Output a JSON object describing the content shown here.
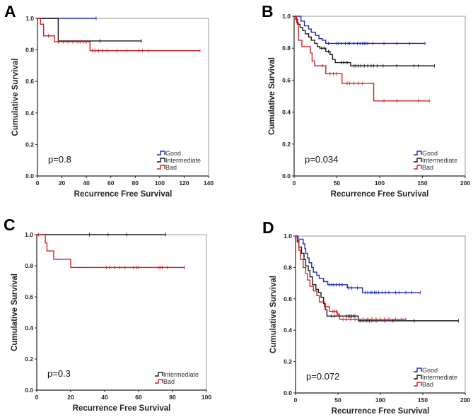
{
  "chart_data": [
    {
      "type": "line",
      "panel_label": "A",
      "xlabel": "Recurrence Free Survival",
      "ylabel": "Cumulative Survival",
      "xlim": [
        0,
        140
      ],
      "ylim": [
        0,
        1
      ],
      "xticks": [
        "0",
        "20",
        "40",
        "60",
        "80",
        "100",
        "120",
        "140"
      ],
      "yticks": [
        "0.0",
        "0.2",
        "0.4",
        "0.6",
        "0.8",
        "1.0"
      ],
      "annotation": "p=0.8",
      "series": [
        {
          "name": "Good",
          "color": "#1f2bb5",
          "end": 48,
          "steps": [],
          "censors": [
            48
          ]
        },
        {
          "name": "Intermediate",
          "color": "#1a1a1a",
          "end": 85,
          "steps": [
            [
              17,
              0.857
            ]
          ],
          "censors": [
            51,
            85
          ]
        },
        {
          "name": "Bad",
          "color": "#d42020",
          "end": 133,
          "steps": [
            [
              2.5,
              0.963
            ],
            [
              5,
              0.889
            ],
            [
              14,
              0.852
            ],
            [
              43,
              0.795
            ]
          ],
          "censors": [
            9,
            17,
            21,
            25,
            29,
            33,
            35,
            38,
            40,
            45,
            47,
            50,
            53,
            57,
            65,
            73,
            83,
            86,
            91,
            133
          ]
        }
      ]
    },
    {
      "type": "line",
      "panel_label": "B",
      "xlabel": "Recurrence Free Survival",
      "ylabel": "Cumulative Survival",
      "xlim": [
        0,
        200
      ],
      "ylim": [
        0,
        1
      ],
      "xticks": [
        "0",
        "50",
        "100",
        "150",
        "200"
      ],
      "yticks": [
        "0.0",
        "0.2",
        "0.4",
        "0.6",
        "0.8",
        "1.0"
      ],
      "annotation": "p=0.034",
      "series": [
        {
          "name": "Good",
          "color": "#1f2bb5",
          "end": 153,
          "steps": [
            [
              8,
              0.97
            ],
            [
              12,
              0.94
            ],
            [
              17,
              0.92
            ],
            [
              20,
              0.9
            ],
            [
              25,
              0.88
            ],
            [
              29,
              0.86
            ],
            [
              33,
              0.85
            ],
            [
              37,
              0.83
            ]
          ],
          "censors": [
            40,
            50,
            52,
            55,
            60,
            63,
            65,
            70,
            74,
            77,
            80,
            82,
            84,
            86,
            92,
            105,
            120,
            135,
            153
          ]
        },
        {
          "name": "Intermediate",
          "color": "#1a1a1a",
          "end": 164,
          "steps": [
            [
              2,
              0.98
            ],
            [
              4,
              0.95
            ],
            [
              7,
              0.93
            ],
            [
              10,
              0.91
            ],
            [
              13,
              0.89
            ],
            [
              17,
              0.87
            ],
            [
              20,
              0.85
            ],
            [
              24,
              0.83
            ],
            [
              27,
              0.81
            ],
            [
              30,
              0.8
            ],
            [
              37,
              0.78
            ],
            [
              42,
              0.76
            ],
            [
              45,
              0.73
            ],
            [
              48,
              0.71
            ],
            [
              66,
              0.69
            ]
          ],
          "censors": [
            32,
            35,
            40,
            55,
            58,
            62,
            70,
            72,
            75,
            78,
            82,
            86,
            90,
            93,
            97,
            104,
            120,
            140,
            145,
            164
          ]
        },
        {
          "name": "Bad",
          "color": "#d42020",
          "end": 158,
          "steps": [
            [
              3,
              0.96
            ],
            [
              5,
              0.85
            ],
            [
              9,
              0.81
            ],
            [
              19,
              0.77
            ],
            [
              21,
              0.72
            ],
            [
              24,
              0.69
            ],
            [
              37,
              0.64
            ],
            [
              56,
              0.58
            ],
            [
              93,
              0.47
            ]
          ],
          "censors": [
            33,
            42,
            46,
            50,
            62,
            65,
            70,
            75,
            80,
            105,
            120,
            145,
            158
          ]
        }
      ]
    },
    {
      "type": "line",
      "panel_label": "C",
      "xlabel": "Recurrence Free Survival",
      "ylabel": "Cumulative Survival",
      "xlim": [
        0,
        100
      ],
      "ylim": [
        0,
        1
      ],
      "xticks": [
        "0",
        "20",
        "40",
        "60",
        "80",
        "100"
      ],
      "yticks": [
        "0.0",
        "0.2",
        "0.4",
        "0.6",
        "0.8",
        "1.0"
      ],
      "annotation": "p=0.3",
      "series": [
        {
          "name": "Intermediate",
          "color": "#1a1a1a",
          "end": 76,
          "steps": [],
          "censors": [
            31,
            42,
            53,
            76
          ]
        },
        {
          "name": "Bad",
          "color": "#d42020",
          "end": 87,
          "steps": [
            [
              5,
              0.947
            ],
            [
              6,
              0.895
            ],
            [
              10,
              0.842
            ],
            [
              20,
              0.789
            ]
          ],
          "censors": [
            1,
            41,
            43,
            46,
            49,
            52,
            57,
            59,
            60,
            72,
            73,
            74,
            77,
            87
          ]
        }
      ]
    },
    {
      "type": "line",
      "panel_label": "D",
      "xlabel": "Recurrence Free Survival",
      "ylabel": "Cumulative Survival",
      "xlim": [
        0,
        200
      ],
      "ylim": [
        0,
        1
      ],
      "xticks": [
        "0",
        "50",
        "100",
        "150",
        "200"
      ],
      "yticks": [
        "0.0",
        "0.2",
        "0.4",
        "0.6",
        "0.8",
        "1.0"
      ],
      "annotation": "p=0.072",
      "series": [
        {
          "name": "Good",
          "color": "#1f2bb5",
          "end": 147,
          "steps": [
            [
              3,
              0.98
            ],
            [
              9,
              0.95
            ],
            [
              11,
              0.92
            ],
            [
              12,
              0.89
            ],
            [
              14,
              0.86
            ],
            [
              16,
              0.83
            ],
            [
              19,
              0.8
            ],
            [
              21,
              0.77
            ],
            [
              25,
              0.75
            ],
            [
              28,
              0.73
            ],
            [
              33,
              0.71
            ],
            [
              38,
              0.69
            ],
            [
              61,
              0.67
            ],
            [
              79,
              0.64
            ]
          ],
          "censors": [
            40,
            43,
            45,
            48,
            52,
            55,
            62,
            66,
            73,
            82,
            85,
            88,
            90,
            93,
            95,
            98,
            102,
            106,
            110,
            118,
            122,
            130,
            137,
            147
          ]
        },
        {
          "name": "Intermediate",
          "color": "#1a1a1a",
          "end": 192,
          "steps": [
            [
              2,
              0.97
            ],
            [
              4,
              0.93
            ],
            [
              7,
              0.89
            ],
            [
              10,
              0.85
            ],
            [
              12,
              0.81
            ],
            [
              15,
              0.78
            ],
            [
              17,
              0.74
            ],
            [
              20,
              0.69
            ],
            [
              24,
              0.66
            ],
            [
              27,
              0.64
            ],
            [
              30,
              0.61
            ],
            [
              33,
              0.57
            ],
            [
              35,
              0.53
            ],
            [
              37,
              0.49
            ],
            [
              74,
              0.46
            ]
          ],
          "censors": [
            42,
            46,
            60,
            62,
            64,
            66,
            68,
            70,
            76,
            80,
            84,
            87,
            90,
            95,
            105,
            115,
            140,
            192
          ]
        },
        {
          "name": "Bad",
          "color": "#d42020",
          "end": 130,
          "steps": [
            [
              2,
              0.96
            ],
            [
              4,
              0.91
            ],
            [
              6,
              0.85
            ],
            [
              9,
              0.8
            ],
            [
              12,
              0.76
            ],
            [
              14,
              0.72
            ],
            [
              17,
              0.68
            ],
            [
              21,
              0.65
            ],
            [
              25,
              0.62
            ],
            [
              28,
              0.58
            ],
            [
              34,
              0.55
            ],
            [
              40,
              0.52
            ],
            [
              49,
              0.5
            ],
            [
              52,
              0.47
            ]
          ],
          "censors": [
            44,
            46,
            48,
            50,
            56,
            60,
            65,
            70,
            80,
            85,
            90,
            95,
            100,
            105,
            110,
            118,
            125,
            130
          ]
        }
      ]
    }
  ]
}
